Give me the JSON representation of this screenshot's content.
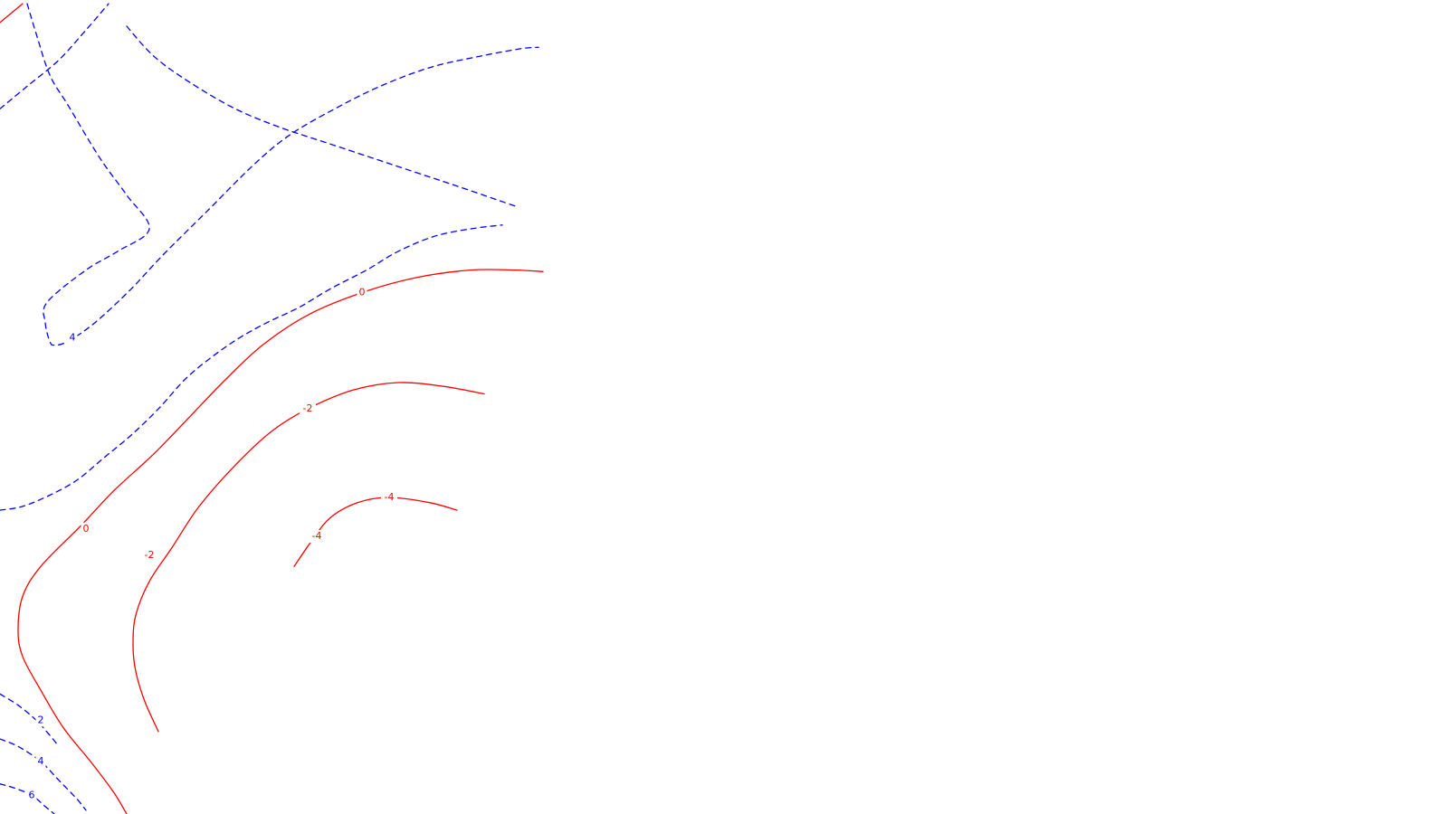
{
  "chart_data": {
    "type": "contour",
    "title": "",
    "xlabel": "",
    "ylabel": "",
    "grid": false,
    "legend": "none",
    "colors": {
      "positive": "#0000ff",
      "zero": "#ff0000",
      "negative": "#ff0000"
    },
    "line_styles": {
      "positive": "dashed",
      "zero": "solid",
      "negative": "solid"
    },
    "series": [
      {
        "level": 4,
        "labels": [
          "4"
        ],
        "sign": "positive",
        "points": [
          [
            -3.7,
            8.3
          ],
          [
            -3.6,
            7.9
          ],
          [
            -3.45,
            7.35
          ],
          [
            -3.25,
            6.95
          ],
          [
            -2.9,
            6.25
          ],
          [
            -2.6,
            5.75
          ],
          [
            -2.35,
            5.3
          ],
          [
            -2.7,
            5.0
          ],
          [
            -3.05,
            4.75
          ],
          [
            -3.48,
            4.32
          ],
          [
            -3.5,
            4.05
          ],
          [
            -3.45,
            3.8
          ],
          [
            -3.4,
            3.75
          ],
          [
            -3.25,
            3.8
          ],
          [
            -2.95,
            4.05
          ],
          [
            -2.55,
            4.5
          ],
          [
            -2.2,
            4.95
          ],
          [
            -1.7,
            5.55
          ],
          [
            -1.2,
            6.15
          ],
          [
            -0.8,
            6.55
          ],
          [
            -0.3,
            6.9
          ],
          [
            0.2,
            7.2
          ],
          [
            0.75,
            7.45
          ],
          [
            1.3,
            7.6
          ],
          [
            1.75,
            7.7
          ],
          [
            1.95,
            7.72
          ]
        ]
      },
      {
        "level": 2,
        "labels": [],
        "sign": "positive",
        "points": [
          [
            -4.0,
            6.9
          ],
          [
            -3.7,
            7.2
          ],
          [
            -3.35,
            7.55
          ],
          [
            -3.05,
            7.95
          ],
          [
            -2.8,
            8.3
          ]
        ]
      },
      {
        "level": 2,
        "labels": [],
        "sign": "positive",
        "points": [
          [
            -2.6,
            8.0
          ],
          [
            -2.3,
            7.6
          ],
          [
            -1.9,
            7.25
          ],
          [
            -1.4,
            6.9
          ],
          [
            -0.9,
            6.65
          ],
          [
            -0.4,
            6.45
          ],
          [
            0.1,
            6.25
          ],
          [
            0.6,
            6.05
          ],
          [
            1.1,
            5.85
          ],
          [
            1.7,
            5.6
          ]
        ]
      },
      {
        "level": 2,
        "labels": [],
        "sign": "positive",
        "points": [
          [
            -4.0,
            1.55
          ],
          [
            -3.75,
            1.6
          ],
          [
            -3.45,
            1.75
          ],
          [
            -3.15,
            1.95
          ],
          [
            -2.85,
            2.25
          ],
          [
            -2.55,
            2.55
          ],
          [
            -2.25,
            2.9
          ],
          [
            -1.95,
            3.3
          ],
          [
            -1.65,
            3.6
          ],
          [
            -1.35,
            3.85
          ],
          [
            -1.05,
            4.05
          ],
          [
            -0.7,
            4.25
          ],
          [
            -0.35,
            4.5
          ],
          [
            0.05,
            4.75
          ],
          [
            0.4,
            5.0
          ],
          [
            0.8,
            5.2
          ],
          [
            1.2,
            5.3
          ],
          [
            1.55,
            5.35
          ]
        ]
      },
      {
        "level": 2,
        "labels": [
          "2"
        ],
        "sign": "positive",
        "points": [
          [
            -4.0,
            -0.9
          ],
          [
            -3.8,
            -1.05
          ],
          [
            -3.6,
            -1.25
          ],
          [
            -3.45,
            -1.45
          ],
          [
            -3.35,
            -1.6
          ]
        ]
      },
      {
        "level": 4,
        "labels": [
          "4"
        ],
        "sign": "positive",
        "points": [
          [
            -4.0,
            -1.5
          ],
          [
            -3.8,
            -1.6
          ],
          [
            -3.55,
            -1.8
          ],
          [
            -3.35,
            -2.05
          ],
          [
            -3.15,
            -2.3
          ],
          [
            -3.05,
            -2.45
          ]
        ]
      },
      {
        "level": 6,
        "labels": [
          "6"
        ],
        "sign": "positive",
        "points": [
          [
            -4.0,
            -2.1
          ],
          [
            -3.85,
            -2.15
          ],
          [
            -3.65,
            -2.25
          ],
          [
            -3.5,
            -2.4
          ],
          [
            -3.4,
            -2.5
          ]
        ]
      },
      {
        "level": 0,
        "labels": [
          "0",
          "0"
        ],
        "sign": "zero",
        "points": [
          [
            -2.6,
            -2.5
          ],
          [
            -2.75,
            -2.2
          ],
          [
            -3.0,
            -1.8
          ],
          [
            -3.3,
            -1.35
          ],
          [
            -3.55,
            -0.85
          ],
          [
            -3.75,
            -0.4
          ],
          [
            -3.8,
            -0.05
          ],
          [
            -3.75,
            0.4
          ],
          [
            -3.55,
            0.8
          ],
          [
            -3.1,
            1.35
          ],
          [
            -2.75,
            1.8
          ],
          [
            -2.3,
            2.3
          ],
          [
            -1.9,
            2.8
          ],
          [
            -1.5,
            3.3
          ],
          [
            -1.1,
            3.75
          ],
          [
            -0.6,
            4.15
          ],
          [
            0.0,
            4.45
          ],
          [
            0.6,
            4.65
          ],
          [
            1.2,
            4.75
          ],
          [
            1.7,
            4.75
          ],
          [
            2.0,
            4.73
          ]
        ]
      },
      {
        "level": -2,
        "labels": [
          "-2",
          "-2"
        ],
        "sign": "negative",
        "points": [
          [
            -2.25,
            -1.4
          ],
          [
            -2.4,
            -1.0
          ],
          [
            -2.5,
            -0.6
          ],
          [
            -2.53,
            -0.25
          ],
          [
            -2.5,
            0.15
          ],
          [
            -2.35,
            0.6
          ],
          [
            -2.1,
            1.05
          ],
          [
            -1.8,
            1.6
          ],
          [
            -1.4,
            2.15
          ],
          [
            -1.0,
            2.6
          ],
          [
            -0.6,
            2.9
          ],
          [
            -0.1,
            3.15
          ],
          [
            0.4,
            3.25
          ],
          [
            0.9,
            3.2
          ],
          [
            1.35,
            3.1
          ]
        ]
      },
      {
        "level": -4,
        "labels": [
          "-4",
          "-4"
        ],
        "sign": "negative",
        "points": [
          [
            -0.75,
            0.8
          ],
          [
            -0.55,
            1.15
          ],
          [
            -0.35,
            1.45
          ],
          [
            -0.05,
            1.65
          ],
          [
            0.3,
            1.72
          ],
          [
            0.75,
            1.65
          ],
          [
            1.05,
            1.55
          ]
        ]
      },
      {
        "level": 0,
        "labels": [],
        "sign": "zero",
        "points": [
          [
            -4.0,
            8.05
          ],
          [
            -3.85,
            8.2
          ],
          [
            -3.75,
            8.3
          ]
        ]
      }
    ],
    "label_positions": [
      {
        "series": 0,
        "text": "4",
        "x": -3.2,
        "y": 3.85
      },
      {
        "series": 4,
        "text": "2",
        "x": -3.55,
        "y": -1.25
      },
      {
        "series": 5,
        "text": "4",
        "x": -3.55,
        "y": -1.8
      },
      {
        "series": 6,
        "text": "6",
        "x": -3.65,
        "y": -2.25
      },
      {
        "series": 7,
        "text": "0",
        "x": 0.0,
        "y": 4.45
      },
      {
        "series": 7,
        "text": "0",
        "x": -3.05,
        "y": 1.3
      },
      {
        "series": 8,
        "text": "-2",
        "x": -0.6,
        "y": 2.9
      },
      {
        "series": 8,
        "text": "-2",
        "x": -2.35,
        "y": 0.95
      },
      {
        "series": 9,
        "text": "-4",
        "x": 0.3,
        "y": 1.72
      },
      {
        "series": 9,
        "text": "-4",
        "x": -0.5,
        "y": 1.2
      }
    ],
    "xlim": [
      -4.0,
      12.0
    ],
    "ylim": [
      -2.5,
      8.35
    ]
  }
}
